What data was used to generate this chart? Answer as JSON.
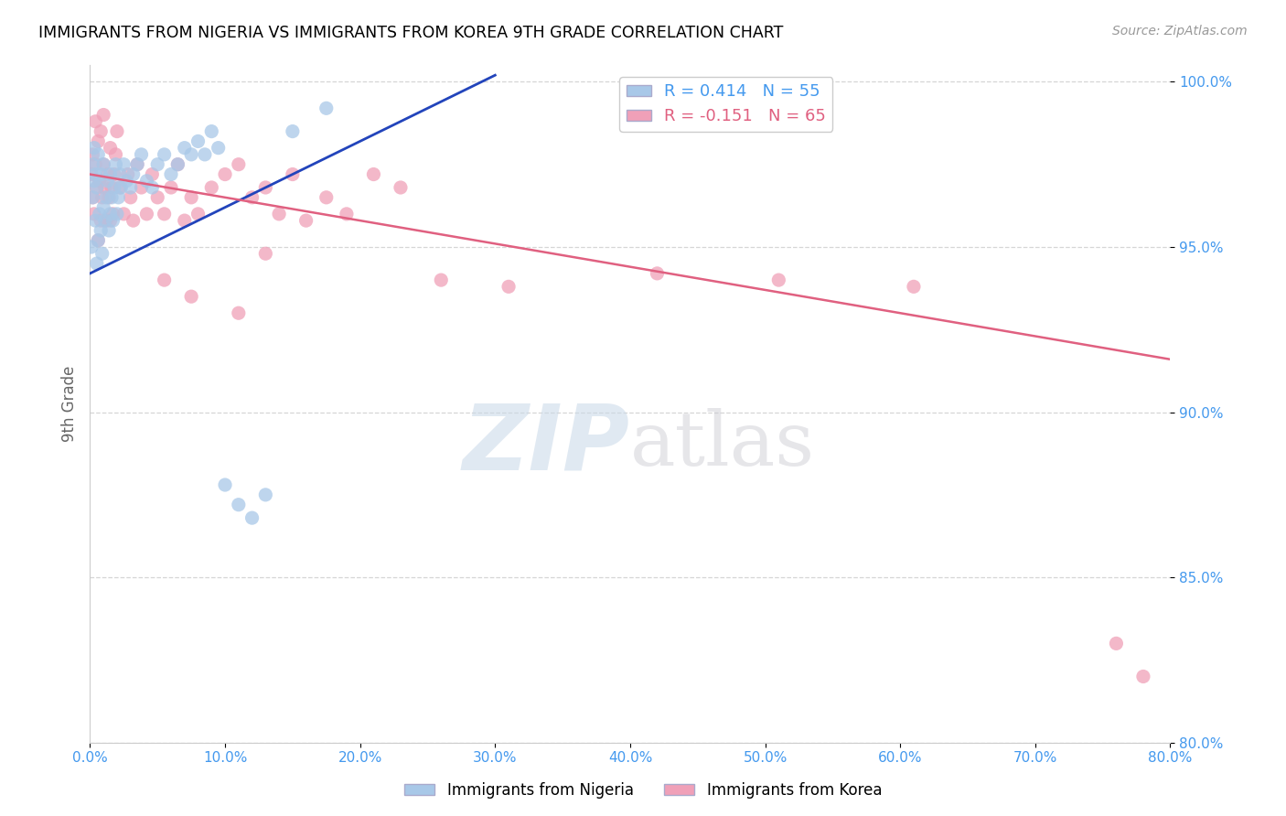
{
  "title": "IMMIGRANTS FROM NIGERIA VS IMMIGRANTS FROM KOREA 9TH GRADE CORRELATION CHART",
  "source": "Source: ZipAtlas.com",
  "ylabel": "9th Grade",
  "legend_nigeria": "Immigrants from Nigeria",
  "legend_korea": "Immigrants from Korea",
  "R_nigeria": 0.414,
  "N_nigeria": 55,
  "R_korea": -0.151,
  "N_korea": 65,
  "xlim": [
    0.0,
    0.8
  ],
  "ylim": [
    0.8,
    1.005
  ],
  "xticks": [
    0.0,
    0.1,
    0.2,
    0.3,
    0.4,
    0.5,
    0.6,
    0.7,
    0.8
  ],
  "yticks": [
    0.8,
    0.85,
    0.9,
    0.95,
    1.0
  ],
  "color_nigeria": "#a8c8e8",
  "color_korea": "#f0a0b8",
  "trendline_nigeria": "#2244bb",
  "trendline_korea": "#e06080",
  "watermark_zip": "ZIP",
  "watermark_atlas": "atlas",
  "nigeria_x": [
    0.001,
    0.002,
    0.002,
    0.003,
    0.003,
    0.004,
    0.004,
    0.005,
    0.005,
    0.006,
    0.006,
    0.007,
    0.008,
    0.008,
    0.009,
    0.01,
    0.01,
    0.011,
    0.012,
    0.013,
    0.014,
    0.015,
    0.015,
    0.016,
    0.017,
    0.018,
    0.019,
    0.02,
    0.021,
    0.022,
    0.023,
    0.025,
    0.027,
    0.03,
    0.032,
    0.035,
    0.038,
    0.042,
    0.046,
    0.05,
    0.055,
    0.06,
    0.065,
    0.07,
    0.075,
    0.08,
    0.085,
    0.09,
    0.095,
    0.1,
    0.11,
    0.12,
    0.13,
    0.15,
    0.175
  ],
  "nigeria_y": [
    0.95,
    0.965,
    0.975,
    0.97,
    0.98,
    0.958,
    0.972,
    0.945,
    0.968,
    0.952,
    0.978,
    0.96,
    0.955,
    0.972,
    0.948,
    0.962,
    0.975,
    0.958,
    0.965,
    0.97,
    0.955,
    0.96,
    0.972,
    0.965,
    0.958,
    0.968,
    0.975,
    0.96,
    0.965,
    0.972,
    0.968,
    0.975,
    0.97,
    0.968,
    0.972,
    0.975,
    0.978,
    0.97,
    0.968,
    0.975,
    0.978,
    0.972,
    0.975,
    0.98,
    0.978,
    0.982,
    0.978,
    0.985,
    0.98,
    0.878,
    0.872,
    0.868,
    0.875,
    0.985,
    0.992
  ],
  "korea_x": [
    0.001,
    0.002,
    0.002,
    0.003,
    0.004,
    0.004,
    0.005,
    0.006,
    0.006,
    0.007,
    0.008,
    0.008,
    0.009,
    0.01,
    0.01,
    0.011,
    0.012,
    0.013,
    0.014,
    0.015,
    0.015,
    0.016,
    0.017,
    0.018,
    0.019,
    0.02,
    0.022,
    0.025,
    0.028,
    0.03,
    0.032,
    0.035,
    0.038,
    0.042,
    0.046,
    0.05,
    0.055,
    0.06,
    0.065,
    0.07,
    0.075,
    0.08,
    0.09,
    0.1,
    0.11,
    0.12,
    0.13,
    0.14,
    0.15,
    0.16,
    0.175,
    0.19,
    0.21,
    0.23,
    0.055,
    0.075,
    0.11,
    0.13,
    0.26,
    0.31,
    0.42,
    0.51,
    0.61,
    0.76,
    0.78
  ],
  "korea_y": [
    0.972,
    0.965,
    0.978,
    0.96,
    0.975,
    0.988,
    0.968,
    0.952,
    0.982,
    0.97,
    0.958,
    0.985,
    0.965,
    0.975,
    0.99,
    0.968,
    0.958,
    0.972,
    0.965,
    0.958,
    0.98,
    0.968,
    0.96,
    0.972,
    0.978,
    0.985,
    0.968,
    0.96,
    0.972,
    0.965,
    0.958,
    0.975,
    0.968,
    0.96,
    0.972,
    0.965,
    0.96,
    0.968,
    0.975,
    0.958,
    0.965,
    0.96,
    0.968,
    0.972,
    0.975,
    0.965,
    0.968,
    0.96,
    0.972,
    0.958,
    0.965,
    0.96,
    0.972,
    0.968,
    0.94,
    0.935,
    0.93,
    0.948,
    0.94,
    0.938,
    0.942,
    0.94,
    0.938,
    0.83,
    0.82
  ],
  "nig_trend_x": [
    0.0,
    0.3
  ],
  "nig_trend_y": [
    0.942,
    1.002
  ],
  "kor_trend_x": [
    0.0,
    0.8
  ],
  "kor_trend_y": [
    0.972,
    0.916
  ]
}
